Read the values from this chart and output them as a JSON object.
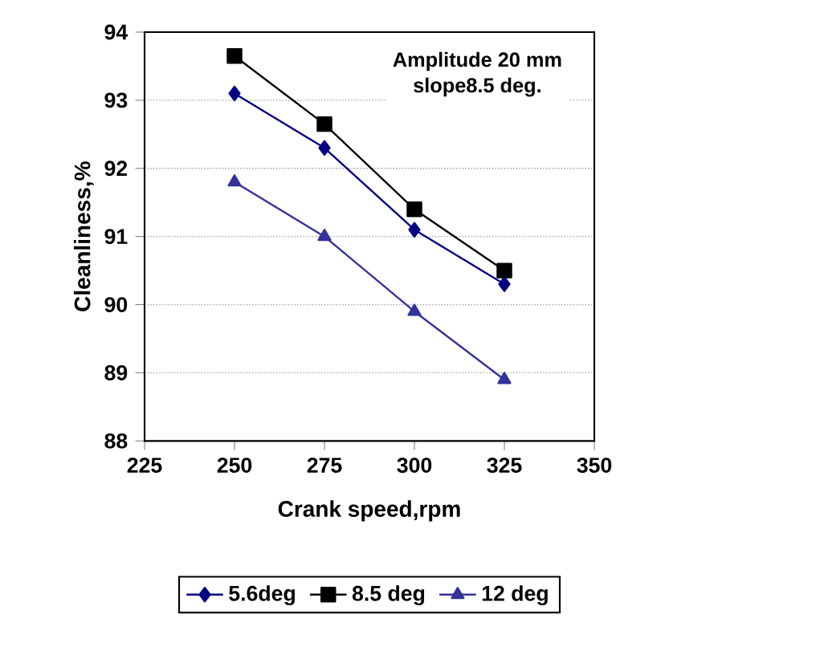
{
  "chart_data": {
    "type": "line",
    "xlabel": "Crank speed,rpm",
    "ylabel": "Cleanliness,%",
    "x": [
      250,
      275,
      300,
      325
    ],
    "series": [
      {
        "name": "5.6deg",
        "color": "#000080",
        "marker": "diamond",
        "values": [
          93.1,
          92.3,
          91.1,
          90.3
        ]
      },
      {
        "name": "8.5 deg",
        "color": "#000000",
        "marker": "square",
        "values": [
          93.65,
          92.65,
          91.4,
          90.5
        ]
      },
      {
        "name": "12 deg",
        "color": "#333399",
        "marker": "triangle",
        "values": [
          91.8,
          91.0,
          89.9,
          88.9
        ]
      }
    ],
    "xlim": [
      225,
      350
    ],
    "xticks": [
      225,
      250,
      275,
      300,
      325,
      350
    ],
    "ylim": [
      88,
      94
    ],
    "yticks": [
      88,
      89,
      90,
      91,
      92,
      93,
      94
    ],
    "grid": "y",
    "legend": "bottom",
    "line_style": "solid",
    "annotations": [
      "Amplitude 20 mm",
      "slope8.5 deg."
    ]
  }
}
